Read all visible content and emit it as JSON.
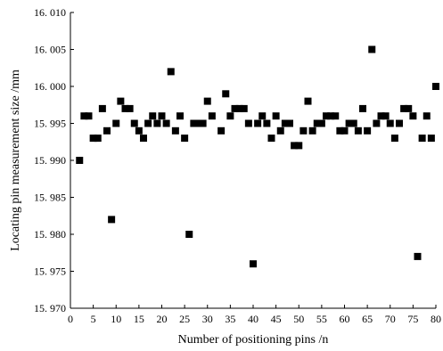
{
  "chart_data": {
    "type": "scatter",
    "title": "",
    "xlabel": "Number of positioning pins /n",
    "ylabel": "Locating pin measurement size /mm",
    "xlim": [
      0,
      80
    ],
    "ylim": [
      15.97,
      16.01
    ],
    "x_ticks": [
      0,
      5,
      10,
      15,
      20,
      25,
      30,
      35,
      40,
      45,
      50,
      55,
      60,
      65,
      70,
      75,
      80
    ],
    "x_tick_labels": [
      "0",
      "5",
      "10",
      "15",
      "20",
      "25",
      "30",
      "35",
      "40",
      "45",
      "50",
      "55",
      "60",
      "65",
      "70",
      "75",
      "80"
    ],
    "y_ticks": [
      15.97,
      15.975,
      15.98,
      15.985,
      15.99,
      15.995,
      16.0,
      16.005,
      16.01
    ],
    "y_tick_labels": [
      "15. 970",
      "15. 975",
      "15. 980",
      "15. 985",
      "15. 990",
      "15. 995",
      "16. 000",
      "16. 005",
      "16. 010"
    ],
    "grid": false,
    "marker": "square",
    "marker_color": "#000000",
    "series": [
      {
        "x": [
          2,
          3,
          4,
          5,
          6,
          7,
          8,
          9,
          10,
          11,
          12,
          13,
          14,
          15,
          16,
          17,
          18,
          19,
          20,
          21,
          22,
          23,
          24,
          25,
          26,
          27,
          28,
          29,
          30,
          31,
          33,
          34,
          35,
          36,
          37,
          38,
          39,
          40,
          41,
          42,
          43,
          44,
          45,
          46,
          47,
          48,
          49,
          50,
          51,
          52,
          53,
          54,
          55,
          56,
          57,
          58,
          59,
          60,
          61,
          62,
          63,
          64,
          65,
          66,
          67,
          68,
          69,
          70,
          71,
          72,
          73,
          74,
          75,
          76,
          77,
          78,
          79,
          80
        ],
        "y": [
          15.99,
          15.996,
          15.996,
          15.993,
          15.993,
          15.997,
          15.994,
          15.982,
          15.995,
          15.998,
          15.997,
          15.997,
          15.995,
          15.994,
          15.993,
          15.995,
          15.996,
          15.995,
          15.996,
          15.995,
          16.002,
          15.994,
          15.996,
          15.993,
          15.98,
          15.995,
          15.995,
          15.995,
          15.998,
          15.996,
          15.994,
          15.999,
          15.996,
          15.997,
          15.997,
          15.997,
          15.995,
          15.976,
          15.995,
          15.996,
          15.995,
          15.993,
          15.996,
          15.994,
          15.995,
          15.995,
          15.992,
          15.992,
          15.994,
          15.998,
          15.994,
          15.995,
          15.995,
          15.996,
          15.996,
          15.996,
          15.994,
          15.994,
          15.995,
          15.995,
          15.994,
          15.997,
          15.994,
          16.005,
          15.995,
          15.996,
          15.996,
          15.995,
          15.993,
          15.995,
          15.997,
          15.997,
          15.996,
          15.977,
          15.993,
          15.996,
          15.993,
          16.0
        ]
      }
    ]
  }
}
